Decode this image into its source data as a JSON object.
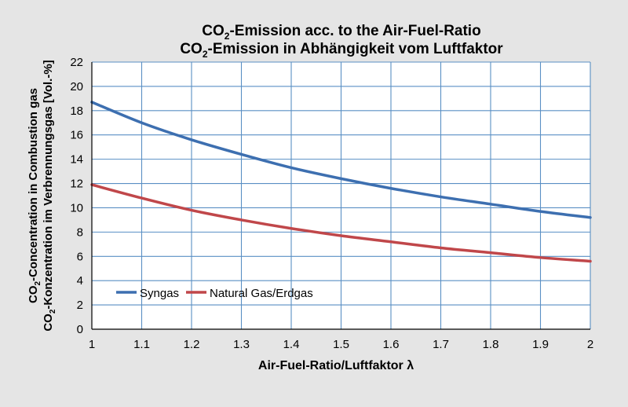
{
  "chart_data": {
    "type": "line",
    "title": {
      "line1": {
        "pre": "CO",
        "sub": "2",
        "post": "-Emission acc. to the Air-Fuel-Ratio"
      },
      "line2": {
        "pre": "CO",
        "sub": "2",
        "post": "-Emission in Abhängigkeit vom Luftfaktor"
      }
    },
    "xlabel": "Air-Fuel-Ratio/Luftfaktor λ",
    "ylabel": {
      "line1": {
        "pre": "CO",
        "sub": "2",
        "post": "-Concentration in Combustion gas"
      },
      "line2": {
        "pre": "CO",
        "sub": "2",
        "post": "-Konzentration im Verbrennungsgas [Vol.-%]"
      }
    },
    "xlim": [
      1,
      2
    ],
    "ylim": [
      0,
      22
    ],
    "x_ticks": [
      "1",
      "1.1",
      "1.2",
      "1.3",
      "1.4",
      "1.5",
      "1.6",
      "1.7",
      "1.8",
      "1.9",
      "2"
    ],
    "y_ticks": [
      "0",
      "2",
      "4",
      "6",
      "8",
      "10",
      "12",
      "14",
      "16",
      "18",
      "20",
      "22"
    ],
    "x_tick_values": [
      1,
      1.1,
      1.2,
      1.3,
      1.4,
      1.5,
      1.6,
      1.7,
      1.8,
      1.9,
      2
    ],
    "y_tick_values": [
      0,
      2,
      4,
      6,
      8,
      10,
      12,
      14,
      16,
      18,
      20,
      22
    ],
    "grid": true,
    "legend_position": "bottom-left",
    "x": [
      1,
      1.1,
      1.2,
      1.3,
      1.4,
      1.5,
      1.6,
      1.7,
      1.8,
      1.9,
      2
    ],
    "series": [
      {
        "name": "Syngas",
        "color": "#3d6fb0",
        "values": [
          18.7,
          17.0,
          15.6,
          14.4,
          13.3,
          12.4,
          11.6,
          10.9,
          10.3,
          9.7,
          9.2
        ]
      },
      {
        "name": "Natural Gas/Erdgas",
        "color": "#c0474a",
        "values": [
          11.9,
          10.8,
          9.8,
          9.0,
          8.3,
          7.7,
          7.2,
          6.7,
          6.3,
          5.9,
          5.6
        ]
      }
    ]
  },
  "colors": {
    "background": "#e5e5e5",
    "plot_background": "#ffffff",
    "grid": "#5a8fc4",
    "axis": "#000000"
  }
}
